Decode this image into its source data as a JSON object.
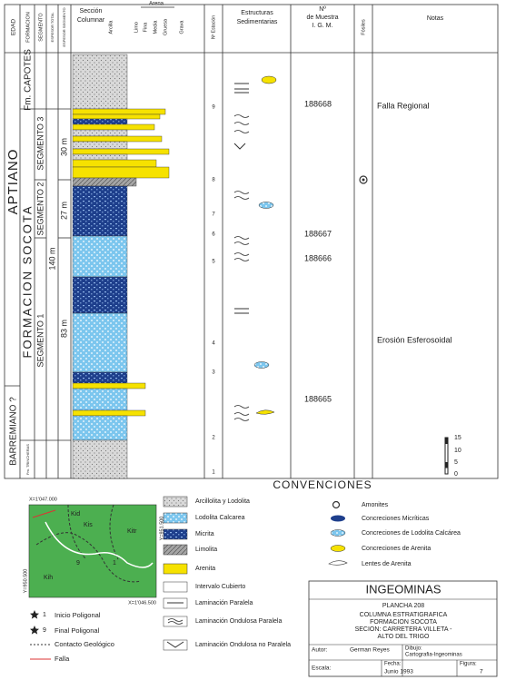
{
  "header": {
    "edad": "EDAD",
    "formacion": "FORMACION",
    "segmento": "SEGMENTO",
    "espesor_total": "ESPESOR TOTAL",
    "espesor_segmento": "ESPESOR SEGMENTO",
    "seccion": [
      "Sección",
      "Columnar"
    ],
    "grain_sizes": [
      "Arcilla",
      "Limo",
      "Fina",
      "Media",
      "Gruesa",
      "Grava"
    ],
    "arena": "Arena",
    "estacion": "Nº Estación",
    "estructuras": [
      "Estructuras",
      "Sedimentarias"
    ],
    "muestra": [
      "Nº",
      "de Muestra",
      "I.   G.   M."
    ],
    "fosiles": "Fósiles",
    "notas": "Notas"
  },
  "ages": [
    "APTIANO",
    "BARREMIANO ?"
  ],
  "formations": [
    "Fm. CAPOTES",
    "FORMACION SOCOTA",
    "Fm. TRINCHERAS"
  ],
  "segments": [
    "SEGMENTO 3",
    "SEGMENTO 2",
    "SEGMENTO 1"
  ],
  "thickness": {
    "total": "140 m",
    "segments": [
      "30 m",
      "27 m",
      "83 m"
    ]
  },
  "stations": [
    "9",
    "8",
    "7",
    "6",
    "5",
    "4",
    "3",
    "2",
    "1"
  ],
  "samples": [
    "188668",
    "188667",
    "188666",
    "188665"
  ],
  "notes": [
    "Falla Regional",
    "Erosión Esferosoidal"
  ],
  "scale": [
    "15",
    "10",
    "5",
    "0"
  ],
  "conventions_title": "CONVENCIONES",
  "legend_lithology": [
    "Arcillolita y Lodolita",
    "Lodolita Calcarea",
    "Micrita",
    "Limolita",
    "Arenita",
    "Intervalo Cubierto",
    "Laminación Paralela",
    "Laminación Ondulosa Paralela",
    "Laminación Ondulosa no Paralela"
  ],
  "legend_symbols": [
    "Amonites",
    "Concreciones Micríticas",
    "Concreciones de Lodolita Calcárea",
    "Concreciones de Arenita",
    "Lentes de Arenita"
  ],
  "map": {
    "coords": [
      "X=1'047.000",
      "Y=951.500",
      "Y=950.500",
      "X=1'046.500"
    ],
    "units": [
      "Kid",
      "Kis",
      "Kitr",
      "Kih"
    ],
    "points": [
      "1",
      "9"
    ],
    "legend": [
      "Inicio Poligonal",
      "Final Poligonal",
      "Contacto Geológico",
      "Falla"
    ]
  },
  "title_block": {
    "institution": "INGEOMINAS",
    "sheet": "PLANCHA 208",
    "lines": [
      "COLUMNA ESTRATIGRAFICA",
      "FORMACION SOCOTA",
      "SECION: CARRETERA VILLETA -",
      "ALTO DEL TRIGO"
    ],
    "author_label": "Autor:",
    "author": "German Reyes",
    "drawing_label": "Dibujo:",
    "drawing": "Cartografia-Ingeominas",
    "scale_label": "Escala:",
    "date_label": "Fecha:",
    "date": "Junio 1993",
    "figure_label": "Figura:",
    "figure": "7"
  }
}
